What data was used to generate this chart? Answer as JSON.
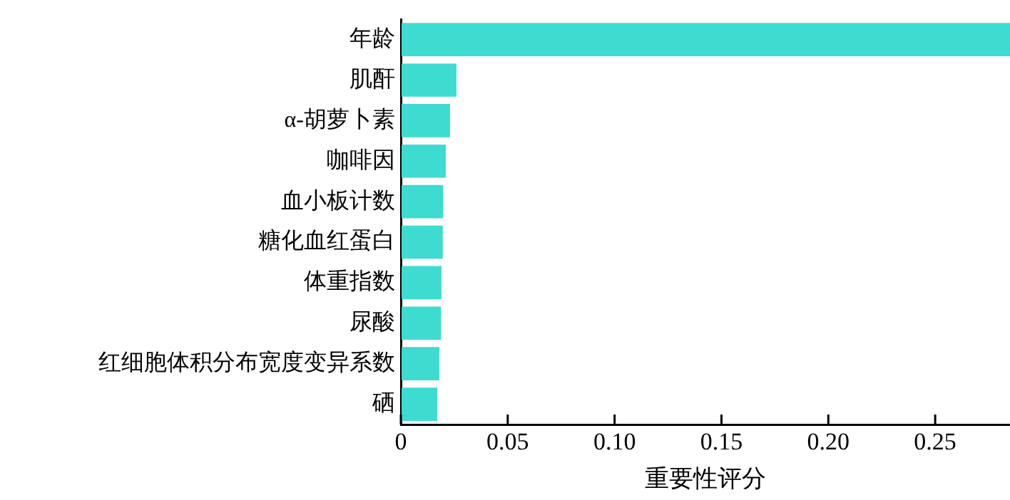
{
  "chart_data": {
    "type": "bar",
    "orientation": "horizontal",
    "xlabel": "重要性评分",
    "categories": [
      "年龄",
      "肌酐",
      "α-胡萝卜素",
      "咖啡因",
      "血小板计数",
      "糖化血红蛋白",
      "体重指数",
      "尿酸",
      "红细胞体积分布宽度变异系数",
      "硒"
    ],
    "values": [
      0.285,
      0.026,
      0.023,
      0.021,
      0.0198,
      0.0196,
      0.019,
      0.0188,
      0.018,
      0.017
    ],
    "color": "#3ddbd0",
    "xlim": [
      0,
      0.285
    ],
    "xticks": [
      0,
      0.05,
      {
        "value": 0.1,
        "label": "0.10"
      },
      {
        "value": 0.15,
        "label": "0.15"
      },
      {
        "value": 0.2,
        "label": "0.20"
      },
      {
        "value": 0.25,
        "label": "0.25"
      }
    ],
    "grid": false,
    "legend": false
  }
}
